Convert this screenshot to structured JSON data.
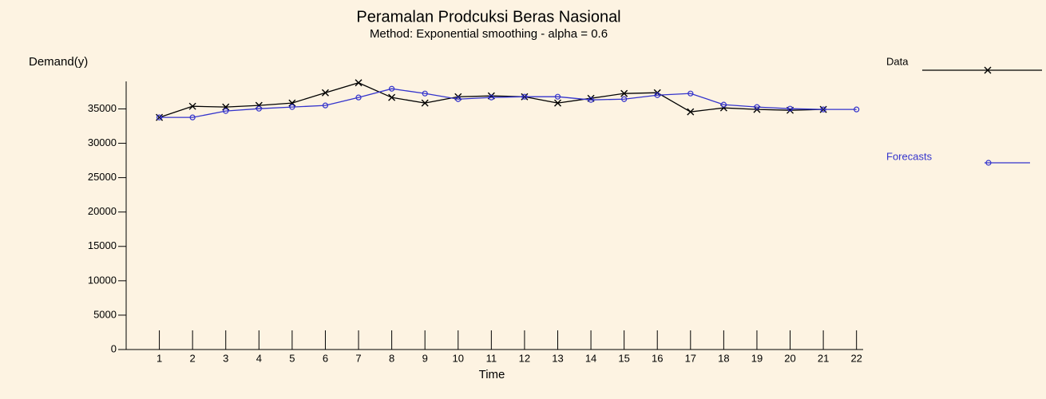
{
  "chart_data": {
    "type": "line",
    "title": "Peramalan Prodcuksi Beras Nasional",
    "subtitle": "Method: Exponential smoothing - alpha = 0.6",
    "y_label": "Demand(y)",
    "x_label": "Time",
    "x": [
      1,
      2,
      3,
      4,
      5,
      6,
      7,
      8,
      9,
      10,
      11,
      12,
      13,
      14,
      15,
      16,
      17,
      18,
      19,
      20,
      21,
      22
    ],
    "series": [
      {
        "name": "Data",
        "color": "#000000",
        "marker": "x",
        "values": [
          33760,
          35380,
          35270,
          35500,
          35850,
          37350,
          38800,
          36660,
          35850,
          36770,
          36890,
          36770,
          35850,
          36540,
          37240,
          37350,
          34570,
          35150,
          34920,
          34800,
          34920,
          null
        ]
      },
      {
        "name": "Forecasts",
        "color": "#3333cc",
        "marker": "o",
        "values": [
          33760,
          33760,
          34690,
          35030,
          35270,
          35500,
          36660,
          37930,
          37240,
          36420,
          36660,
          36770,
          36770,
          36310,
          36420,
          37000,
          37240,
          35620,
          35270,
          35030,
          34920,
          34920
        ]
      }
    ],
    "xlim": [
      0,
      22.2
    ],
    "ylim": [
      0,
      39000
    ],
    "xticks": [
      1,
      2,
      3,
      4,
      5,
      6,
      7,
      8,
      9,
      10,
      11,
      12,
      13,
      14,
      15,
      16,
      17,
      18,
      19,
      20,
      21,
      22
    ],
    "yticks": [
      0,
      5000,
      10000,
      15000,
      20000,
      25000,
      30000,
      35000
    ],
    "grid": false
  }
}
